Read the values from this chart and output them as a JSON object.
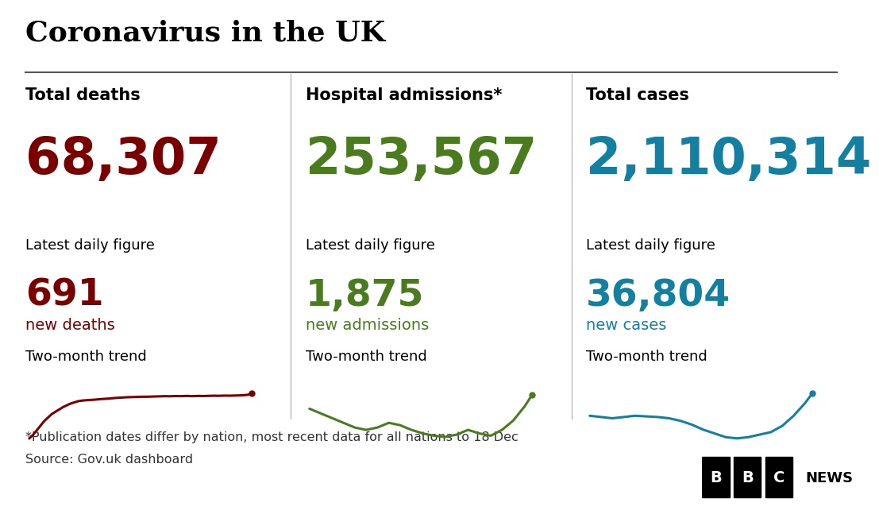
{
  "title": "Coronavirus in the UK",
  "background_color": "#ffffff",
  "title_color": "#000000",
  "title_fontsize": 26,
  "columns": [
    {
      "label": "Total deaths",
      "total": "68,307",
      "total_color": "#7a0000",
      "daily_label": "Latest daily figure",
      "daily_value": "691",
      "daily_color": "#7a0000",
      "daily_sub": "new deaths",
      "daily_sub_color": "#7a0000",
      "trend_label": "Two-month trend",
      "trend_color": "#7a0000",
      "trend_x": [
        0,
        1,
        2,
        3,
        4,
        5,
        6,
        7,
        8,
        9,
        10,
        11,
        12,
        13,
        14,
        15,
        16,
        17,
        18,
        19,
        20,
        21,
        22,
        23,
        24,
        25,
        26,
        27,
        28,
        29,
        30,
        31,
        32,
        33,
        34,
        35,
        36,
        37,
        38,
        39,
        40,
        41,
        42,
        43,
        44,
        45,
        46,
        47,
        48,
        49,
        50,
        51,
        52,
        53,
        54,
        55,
        56,
        57,
        58,
        59
      ],
      "trend_y": [
        0.0,
        0.3,
        0.7,
        1.1,
        1.5,
        1.8,
        2.1,
        2.3,
        2.5,
        2.7,
        2.85,
        3.0,
        3.1,
        3.2,
        3.25,
        3.28,
        3.3,
        3.32,
        3.35,
        3.38,
        3.4,
        3.42,
        3.45,
        3.48,
        3.5,
        3.52,
        3.54,
        3.55,
        3.56,
        3.57,
        3.58,
        3.58,
        3.59,
        3.6,
        3.61,
        3.62,
        3.63,
        3.62,
        3.63,
        3.64,
        3.63,
        3.64,
        3.65,
        3.63,
        3.64,
        3.65,
        3.64,
        3.65,
        3.66,
        3.67,
        3.66,
        3.67,
        3.68,
        3.67,
        3.68,
        3.69,
        3.7,
        3.72,
        3.75,
        3.9
      ]
    },
    {
      "label": "Hospital admissions*",
      "total": "253,567",
      "total_color": "#4a7c1f",
      "daily_label": "Latest daily figure",
      "daily_value": "1,875",
      "daily_color": "#4a7c1f",
      "daily_sub": "new admissions",
      "daily_sub_color": "#4a7c1f",
      "trend_label": "Two-month trend",
      "trend_color": "#4a7c1f",
      "trend_x": [
        0,
        3,
        6,
        9,
        12,
        15,
        18,
        21,
        24,
        27,
        30,
        33,
        36,
        39,
        42,
        45,
        48,
        51,
        54,
        57,
        59
      ],
      "trend_y": [
        3.0,
        2.8,
        2.6,
        2.4,
        2.2,
        2.1,
        2.2,
        2.4,
        2.3,
        2.1,
        1.95,
        1.85,
        1.8,
        1.9,
        2.1,
        1.95,
        1.85,
        2.1,
        2.5,
        3.1,
        3.6
      ]
    },
    {
      "label": "Total cases",
      "total": "2,110,314",
      "total_color": "#1380a1",
      "daily_label": "Latest daily figure",
      "daily_value": "36,804",
      "daily_color": "#1380a1",
      "daily_sub": "new cases",
      "daily_sub_color": "#1380a1",
      "trend_label": "Two-month trend",
      "trend_color": "#1380a1",
      "trend_x": [
        0,
        3,
        6,
        9,
        12,
        15,
        18,
        21,
        24,
        27,
        30,
        33,
        36,
        39,
        42,
        45,
        48,
        51,
        54,
        57,
        59
      ],
      "trend_y": [
        3.2,
        3.1,
        3.0,
        3.1,
        3.2,
        3.15,
        3.1,
        3.0,
        2.8,
        2.5,
        2.1,
        1.8,
        1.5,
        1.4,
        1.5,
        1.7,
        1.9,
        2.4,
        3.2,
        4.2,
        5.0
      ]
    }
  ],
  "footnote1": "*Publication dates differ by nation, most recent data for all nations to 18 Dec",
  "footnote2": "Source: Gov.uk dashboard",
  "footnote_color": "#333333",
  "footnote_fontsize": 11.5,
  "label_fontsize": 15,
  "total_fontsize": 46,
  "daily_value_fontsize": 34,
  "daily_sub_fontsize": 14,
  "trend_label_fontsize": 13,
  "daily_label_fontsize": 13
}
